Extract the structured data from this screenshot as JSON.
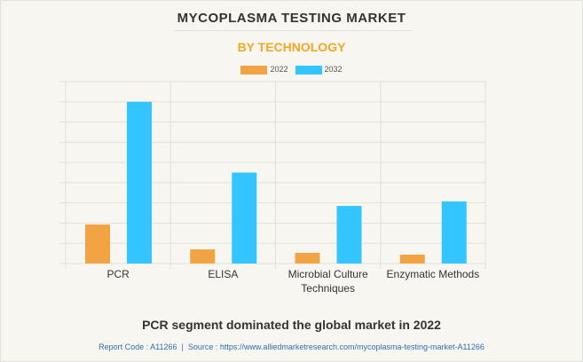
{
  "chart_data": {
    "type": "bar",
    "title": "MYCOPLASMA TESTING MARKET",
    "subtitle": "BY TECHNOLOGY",
    "categories": [
      "PCR",
      "ELISA",
      "Microbial Culture Techniques",
      "Enzymatic Methods"
    ],
    "category_lines": [
      [
        "PCR"
      ],
      [
        "ELISA"
      ],
      [
        "Microbial Culture",
        "Techniques"
      ],
      [
        "Enzymatic Methods"
      ]
    ],
    "series": [
      {
        "name": "2022",
        "color": "#f2a444",
        "values": [
          1.93,
          0.7,
          0.53,
          0.44
        ]
      },
      {
        "name": "2032",
        "color": "#33c5ff",
        "values": [
          8.0,
          4.5,
          2.85,
          3.07
        ]
      }
    ],
    "ylim": [
      0,
      9
    ],
    "grid": true,
    "legend": "top-center",
    "xlabel": "",
    "ylabel": ""
  },
  "footer": {
    "headline": "PCR segment dominated the global market in 2022",
    "source": "Report Code : A11266  |  Source : https://www.alliedmarketresearch.com/mycoplasma-testing-market-A11266"
  }
}
